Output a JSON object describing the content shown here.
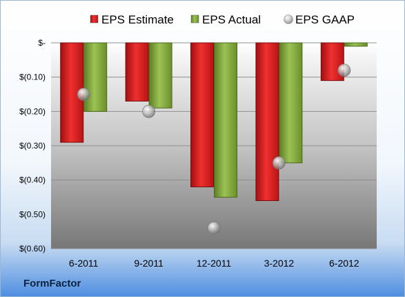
{
  "brand": {
    "label": "FormFactor"
  },
  "chart_data": {
    "type": "bar",
    "categories": [
      "6-2011",
      "9-2011",
      "12-2011",
      "3-2012",
      "6-2012"
    ],
    "series": [
      {
        "name": "EPS Estimate",
        "kind": "bar",
        "color": "#e01f1f",
        "values": [
          -0.29,
          -0.17,
          -0.42,
          -0.46,
          -0.11
        ]
      },
      {
        "name": "EPS Actual",
        "kind": "bar",
        "color": "#7fa83a",
        "values": [
          -0.2,
          -0.19,
          -0.45,
          -0.35,
          -0.01
        ]
      },
      {
        "name": "EPS GAAP",
        "kind": "marker",
        "color": "#9a9a9a",
        "values": [
          -0.15,
          -0.2,
          -0.54,
          -0.35,
          -0.08
        ]
      }
    ],
    "y_ticks": [
      0,
      -0.1,
      -0.2,
      -0.3,
      -0.4,
      -0.5,
      -0.6
    ],
    "y_tick_labels": [
      "$-",
      "$(0.10)",
      "$(0.20)",
      "$(0.30)",
      "$(0.40)",
      "$(0.50)",
      "$(0.60)"
    ],
    "ylim": [
      -0.6,
      0
    ],
    "grid": true,
    "legend_position": "top",
    "title": "",
    "xlabel": "",
    "ylabel": ""
  }
}
